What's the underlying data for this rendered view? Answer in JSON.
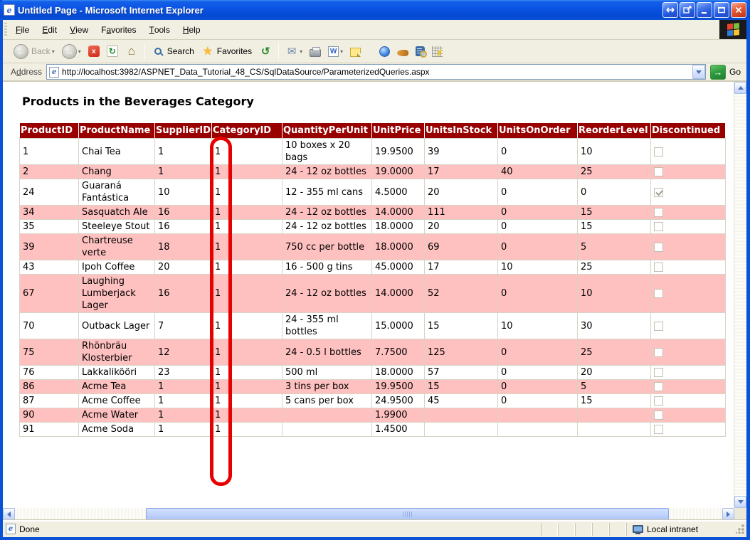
{
  "window": {
    "title": "Untitled Page - Microsoft Internet Explorer"
  },
  "menu": {
    "items": [
      {
        "label": "File",
        "accel": 0
      },
      {
        "label": "Edit",
        "accel": 0
      },
      {
        "label": "View",
        "accel": 0
      },
      {
        "label": "Favorites",
        "accel": 1
      },
      {
        "label": "Tools",
        "accel": 0
      },
      {
        "label": "Help",
        "accel": 0
      }
    ]
  },
  "toolbar": {
    "back_label": "Back",
    "search_label": "Search",
    "favorites_label": "Favorites"
  },
  "icons": {
    "back_arrow": "←",
    "forward_arrow": "→",
    "stop": "x",
    "refresh": "↻",
    "home": "⌂",
    "favorites_star": "★",
    "history": "↺",
    "mail": "✉",
    "go_arrow": "→",
    "ie_e": "e"
  },
  "address": {
    "label": "Address",
    "accel": 1,
    "url": "http://localhost:3982/ASPNET_Data_Tutorial_48_CS/SqlDataSource/ParameterizedQueries.aspx",
    "go_label": "Go"
  },
  "page": {
    "heading": "Products in the Beverages Category"
  },
  "table": {
    "columns": [
      {
        "key": "ProductID",
        "label": "ProductID"
      },
      {
        "key": "ProductName",
        "label": "ProductName"
      },
      {
        "key": "SupplierID",
        "label": "SupplierID"
      },
      {
        "key": "CategoryID",
        "label": "CategoryID"
      },
      {
        "key": "QuantityPerUnit",
        "label": "QuantityPerUnit"
      },
      {
        "key": "UnitPrice",
        "label": "UnitPrice"
      },
      {
        "key": "UnitsInStock",
        "label": "UnitsInStock"
      },
      {
        "key": "UnitsOnOrder",
        "label": "UnitsOnOrder"
      },
      {
        "key": "ReorderLevel",
        "label": "ReorderLevel"
      },
      {
        "key": "Discontinued",
        "label": "Discontinued",
        "type": "checkbox"
      }
    ],
    "rows": [
      {
        "ProductID": "1",
        "ProductName": "Chai Tea",
        "SupplierID": "1",
        "CategoryID": "1",
        "QuantityPerUnit": "10 boxes x 20 bags",
        "UnitPrice": "19.9500",
        "UnitsInStock": "39",
        "UnitsOnOrder": "0",
        "ReorderLevel": "10",
        "Discontinued": false
      },
      {
        "ProductID": "2",
        "ProductName": "Chang",
        "SupplierID": "1",
        "CategoryID": "1",
        "QuantityPerUnit": "24 - 12 oz bottles",
        "UnitPrice": "19.0000",
        "UnitsInStock": "17",
        "UnitsOnOrder": "40",
        "ReorderLevel": "25",
        "Discontinued": false
      },
      {
        "ProductID": "24",
        "ProductName": "Guaraná Fantástica",
        "SupplierID": "10",
        "CategoryID": "1",
        "QuantityPerUnit": "12 - 355 ml cans",
        "UnitPrice": "4.5000",
        "UnitsInStock": "20",
        "UnitsOnOrder": "0",
        "ReorderLevel": "0",
        "Discontinued": true
      },
      {
        "ProductID": "34",
        "ProductName": "Sasquatch Ale",
        "SupplierID": "16",
        "CategoryID": "1",
        "QuantityPerUnit": "24 - 12 oz bottles",
        "UnitPrice": "14.0000",
        "UnitsInStock": "111",
        "UnitsOnOrder": "0",
        "ReorderLevel": "15",
        "Discontinued": false
      },
      {
        "ProductID": "35",
        "ProductName": "Steeleye Stout",
        "SupplierID": "16",
        "CategoryID": "1",
        "QuantityPerUnit": "24 - 12 oz bottles",
        "UnitPrice": "18.0000",
        "UnitsInStock": "20",
        "UnitsOnOrder": "0",
        "ReorderLevel": "15",
        "Discontinued": false
      },
      {
        "ProductID": "39",
        "ProductName": "Chartreuse verte",
        "SupplierID": "18",
        "CategoryID": "1",
        "QuantityPerUnit": "750 cc per bottle",
        "UnitPrice": "18.0000",
        "UnitsInStock": "69",
        "UnitsOnOrder": "0",
        "ReorderLevel": "5",
        "Discontinued": false
      },
      {
        "ProductID": "43",
        "ProductName": "Ipoh Coffee",
        "SupplierID": "20",
        "CategoryID": "1",
        "QuantityPerUnit": "16 - 500 g tins",
        "UnitPrice": "45.0000",
        "UnitsInStock": "17",
        "UnitsOnOrder": "10",
        "ReorderLevel": "25",
        "Discontinued": false
      },
      {
        "ProductID": "67",
        "ProductName": "Laughing Lumberjack Lager",
        "SupplierID": "16",
        "CategoryID": "1",
        "QuantityPerUnit": "24 - 12 oz bottles",
        "UnitPrice": "14.0000",
        "UnitsInStock": "52",
        "UnitsOnOrder": "0",
        "ReorderLevel": "10",
        "Discontinued": false
      },
      {
        "ProductID": "70",
        "ProductName": "Outback Lager",
        "SupplierID": "7",
        "CategoryID": "1",
        "QuantityPerUnit": "24 - 355 ml bottles",
        "UnitPrice": "15.0000",
        "UnitsInStock": "15",
        "UnitsOnOrder": "10",
        "ReorderLevel": "30",
        "Discontinued": false
      },
      {
        "ProductID": "75",
        "ProductName": "Rhönbräu Klosterbier",
        "SupplierID": "12",
        "CategoryID": "1",
        "QuantityPerUnit": "24 - 0.5 l bottles",
        "UnitPrice": "7.7500",
        "UnitsInStock": "125",
        "UnitsOnOrder": "0",
        "ReorderLevel": "25",
        "Discontinued": false
      },
      {
        "ProductID": "76",
        "ProductName": "Lakkalikööri",
        "SupplierID": "23",
        "CategoryID": "1",
        "QuantityPerUnit": "500 ml",
        "UnitPrice": "18.0000",
        "UnitsInStock": "57",
        "UnitsOnOrder": "0",
        "ReorderLevel": "20",
        "Discontinued": false
      },
      {
        "ProductID": "86",
        "ProductName": "Acme Tea",
        "SupplierID": "1",
        "CategoryID": "1",
        "QuantityPerUnit": "3 tins per box",
        "UnitPrice": "19.9500",
        "UnitsInStock": "15",
        "UnitsOnOrder": "0",
        "ReorderLevel": "5",
        "Discontinued": false
      },
      {
        "ProductID": "87",
        "ProductName": "Acme Coffee",
        "SupplierID": "1",
        "CategoryID": "1",
        "QuantityPerUnit": "5 cans per box",
        "UnitPrice": "24.9500",
        "UnitsInStock": "45",
        "UnitsOnOrder": "0",
        "ReorderLevel": "15",
        "Discontinued": false
      },
      {
        "ProductID": "90",
        "ProductName": "Acme Water",
        "SupplierID": "1",
        "CategoryID": "1",
        "QuantityPerUnit": "",
        "UnitPrice": "1.9900",
        "UnitsInStock": "",
        "UnitsOnOrder": "",
        "ReorderLevel": "",
        "Discontinued": false
      },
      {
        "ProductID": "91",
        "ProductName": "Acme Soda",
        "SupplierID": "1",
        "CategoryID": "1",
        "QuantityPerUnit": "",
        "UnitPrice": "1.4500",
        "UnitsInStock": "",
        "UnitsOnOrder": "",
        "ReorderLevel": "",
        "Discontinued": false
      }
    ]
  },
  "annotation": {
    "type": "oval",
    "color": "#e60000",
    "target": "CategoryID column values"
  },
  "statusbar": {
    "left_text": "Done",
    "right_text": "Local intranet"
  },
  "colors": {
    "table_header_bg": "#990000",
    "table_alt_row": "#ffc0c0",
    "titlebar_blue": "#0a52d6",
    "annotation_red": "#e60000",
    "go_button_green": "#2e9e3f",
    "chrome_tan": "#f1efe2"
  }
}
